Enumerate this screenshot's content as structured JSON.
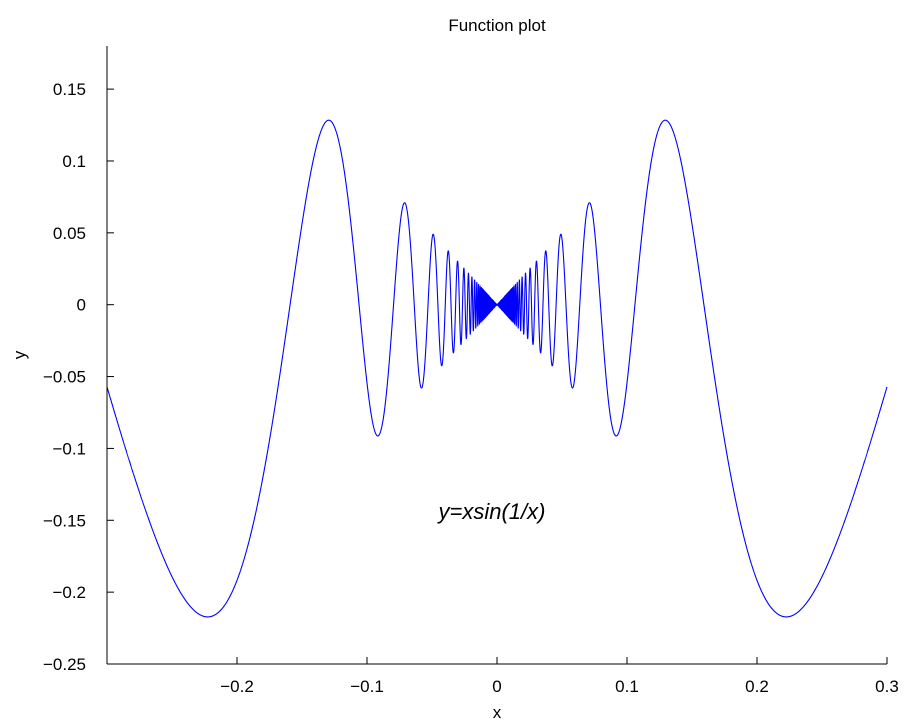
{
  "chart_data": {
    "type": "line",
    "title": "Function plot",
    "xlabel": "x",
    "ylabel": "y",
    "xlim": [
      -0.3,
      0.3
    ],
    "ylim": [
      -0.25,
      0.18
    ],
    "xticks": [
      -0.2,
      -0.1,
      0,
      0.1,
      0.2,
      0.3
    ],
    "xtick_labels": [
      "−0.2",
      "−0.1",
      "0",
      "0.1",
      "0.2",
      "0.3"
    ],
    "yticks": [
      -0.25,
      -0.2,
      -0.15,
      -0.1,
      -0.05,
      0,
      0.05,
      0.1,
      0.15
    ],
    "ytick_labels": [
      "−0.25",
      "−0.2",
      "−0.15",
      "−0.1",
      "−0.05",
      "0",
      "0.05",
      "0.1",
      "0.15"
    ],
    "annotation": "y=xsin(1/x)",
    "grid": false,
    "box": "left-bottom",
    "series": [
      {
        "function": "x*sin(1/x)",
        "x_range": [
          -0.3,
          0.3
        ],
        "color": "#0000ff"
      }
    ]
  }
}
